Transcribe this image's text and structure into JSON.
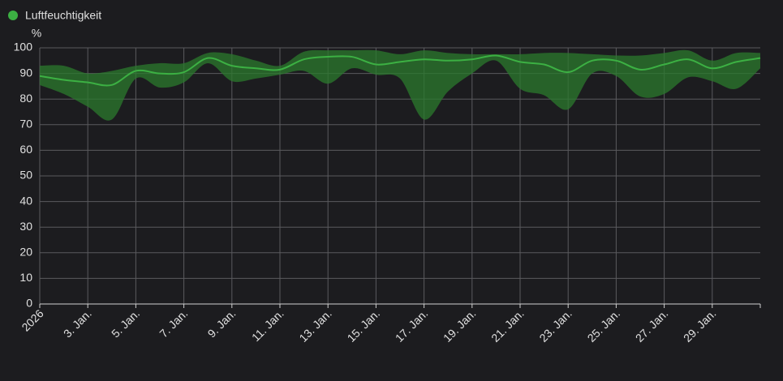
{
  "chart_data": {
    "type": "line",
    "y_unit": "%",
    "categories": [
      "2026",
      null,
      "3. Jan.",
      null,
      "5. Jan.",
      null,
      "7. Jan.",
      null,
      "9. Jan.",
      null,
      "11. Jan.",
      null,
      "13. Jan.",
      null,
      "15. Jan.",
      null,
      "17. Jan.",
      null,
      "19. Jan.",
      null,
      "21. Jan.",
      null,
      "23. Jan.",
      null,
      "25. Jan.",
      null,
      "27. Jan.",
      null,
      "29. Jan.",
      null,
      null
    ],
    "series": [
      {
        "name": "Luftfeuchtigkeit",
        "color": "#3cb043",
        "band_color": "#2b7a2e",
        "values": [
          89,
          87.5,
          86.5,
          85.5,
          91,
          90,
          90.5,
          96,
          93,
          92,
          91.5,
          95.5,
          96.5,
          96.5,
          93.5,
          94.5,
          95.5,
          95,
          95.5,
          97,
          94.5,
          93.5,
          90.5,
          95,
          95,
          91.5,
          93.5,
          95.5,
          92,
          94.5,
          96
        ],
        "min": [
          85.5,
          82,
          77,
          72,
          88,
          84.5,
          86.5,
          94,
          87,
          88,
          89.5,
          91,
          86,
          92,
          89.5,
          88,
          72,
          83,
          90,
          95,
          84,
          81.5,
          76,
          90,
          89,
          81,
          82,
          88.5,
          87,
          84,
          92
        ],
        "max": [
          93,
          93,
          90,
          91,
          93,
          94,
          94,
          98,
          97.5,
          95,
          93,
          98.5,
          99,
          99,
          99,
          97.5,
          99,
          98,
          97.5,
          97.5,
          97.5,
          98,
          98,
          97.5,
          97,
          97,
          98,
          99,
          95,
          98,
          98
        ]
      }
    ],
    "ylim": [
      0,
      100
    ],
    "yticks": [
      0,
      10,
      20,
      30,
      40,
      50,
      60,
      70,
      80,
      90,
      100
    ],
    "grid": true
  }
}
